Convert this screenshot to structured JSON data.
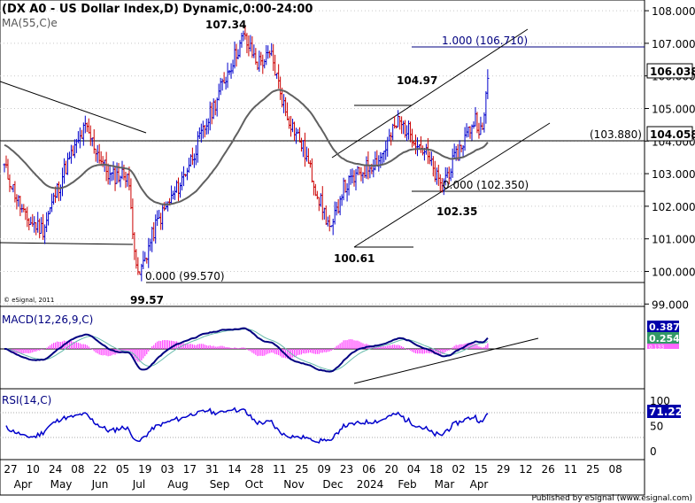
{
  "chart_data": [
    {
      "panel": "price",
      "type": "bar",
      "title": "(DX A0 - US Dollar Index,D) Dynamic,0:00-24:00",
      "indicator_label": "MA(55,C)e",
      "y_ticks": [
        "108.000",
        "107.000",
        "106.000",
        "105.000",
        "104.000",
        "103.000",
        "102.000",
        "101.000",
        "100.000",
        "99.000"
      ],
      "ylim": [
        99.0,
        108.0
      ],
      "last_price": "106.038",
      "ma_value": "104.058",
      "levels": [
        {
          "label": "1.000 (106.710)",
          "value": 106.71
        },
        {
          "label": "(103.880)",
          "value": 103.88
        },
        {
          "label": "0.000 (102.350)",
          "value": 102.35
        },
        {
          "label": "0.000 (99.570)",
          "value": 99.57
        }
      ],
      "annotations": [
        {
          "text": "107.34",
          "value": 107.34
        },
        {
          "text": "104.97",
          "value": 104.97
        },
        {
          "text": "102.35",
          "value": 102.35
        },
        {
          "text": "100.61",
          "value": 100.61
        },
        {
          "text": "99.57",
          "value": 99.57
        }
      ],
      "copyright": "© eSignal, 2011"
    },
    {
      "panel": "macd",
      "type": "line",
      "title": "MACD(12,26,9,C)",
      "values": [
        "0.387",
        "0.254"
      ],
      "hist_value": "0.133"
    },
    {
      "panel": "rsi",
      "type": "line",
      "title": "RSI(14,C)",
      "value": "71.228",
      "y_ticks": [
        "100",
        "50",
        "0"
      ]
    },
    {
      "panel": "x_axis",
      "type": "bar",
      "days": [
        "27",
        "10",
        "24",
        "08",
        "22",
        "05",
        "19",
        "03",
        "17",
        "31",
        "14",
        "28",
        "11",
        "25",
        "09",
        "23",
        "06",
        "20",
        "04",
        "18",
        "02",
        "15",
        "29",
        "12",
        "26",
        "11",
        "25",
        "08"
      ],
      "months": [
        "Apr",
        "May",
        "Jun",
        "Jul",
        "Aug",
        "Sep",
        "Oct",
        "Nov",
        "Dec",
        "2024",
        "Feb",
        "Mar",
        "Apr"
      ],
      "footer": "Published by eSignal (www.esignal.com)"
    }
  ]
}
